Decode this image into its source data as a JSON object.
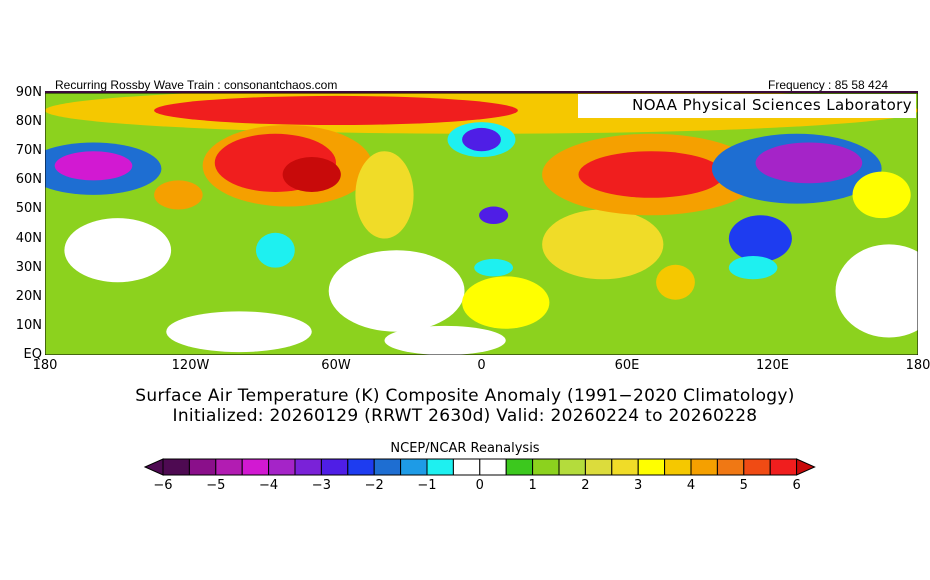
{
  "header": {
    "left": "Recurring Rossby Wave Train : consonantchaos.com",
    "right": "Frequency : 85 58 424",
    "lab": "NOAA Physical Sciences Laboratory"
  },
  "titles": {
    "line1": "Surface Air Temperature (K) Composite Anomaly (1991−2020 Climatology)",
    "line2": "Initialized: 20260129 (RRWT 2630d) Valid: 20260224 to 20260228",
    "source": "NCEP/NCAR Reanalysis"
  },
  "chart_data": {
    "type": "heatmap",
    "title": "Surface Air Temperature (K) Composite Anomaly",
    "lat_labels": [
      "90N",
      "80N",
      "70N",
      "60N",
      "50N",
      "40N",
      "30N",
      "20N",
      "10N",
      "EQ"
    ],
    "lon_labels": [
      "180",
      "120W",
      "60W",
      "0",
      "60E",
      "120E",
      "180"
    ],
    "lat_range": [
      0,
      90
    ],
    "lon_range": [
      -180,
      180
    ],
    "colorbar": {
      "ticks": [
        "-6",
        "-5",
        "-4",
        "-3",
        "-2",
        "-1",
        "0",
        "1",
        "2",
        "3",
        "4",
        "5",
        "6"
      ],
      "range": [
        -6,
        6
      ],
      "step": 0.5,
      "colors": [
        "#4e0a52",
        "#8a0f8a",
        "#b21cb2",
        "#d219d2",
        "#a524c8",
        "#7a22d8",
        "#4f1ee6",
        "#1e3cf0",
        "#1e6ed2",
        "#1e9be6",
        "#1ef0f0",
        "#ffffff",
        "#ffffff",
        "#3cc81e",
        "#8cd21e",
        "#b4dc3c",
        "#dcdc3c",
        "#f0dc28",
        "#ffff00",
        "#f5c800",
        "#f5a000",
        "#f07814",
        "#f04b14",
        "#f01e1e"
      ],
      "under": "#4e0a52",
      "over": "#c80a0a"
    },
    "base_value": 1,
    "features": [
      {
        "lon": 0,
        "lat": 84,
        "dlon": 180,
        "dlat": 8,
        "value": 3.5
      },
      {
        "lon": -60,
        "lat": 84,
        "dlon": 75,
        "dlat": 5,
        "value": 5.5
      },
      {
        "lon": -150,
        "lat": 36,
        "dlon": 22,
        "dlat": 11,
        "value": 0
      },
      {
        "lon": 168,
        "lat": 22,
        "dlon": 22,
        "dlat": 16,
        "value": 0
      },
      {
        "lon": -35,
        "lat": 22,
        "dlon": 28,
        "dlat": 14,
        "value": 0
      },
      {
        "lon": -100,
        "lat": 8,
        "dlon": 30,
        "dlat": 7,
        "value": 0
      },
      {
        "lon": -15,
        "lat": 5,
        "dlon": 25,
        "dlat": 5,
        "value": 0
      },
      {
        "lon": -80,
        "lat": 65,
        "dlon": 35,
        "dlat": 14,
        "value": 4
      },
      {
        "lon": -85,
        "lat": 66,
        "dlon": 25,
        "dlat": 10,
        "value": 5.5
      },
      {
        "lon": -70,
        "lat": 62,
        "dlon": 12,
        "dlat": 6,
        "value": 6
      },
      {
        "lon": -160,
        "lat": 64,
        "dlon": 28,
        "dlat": 9,
        "value": -2
      },
      {
        "lon": -160,
        "lat": 65,
        "dlon": 16,
        "dlat": 5,
        "value": -4.5
      },
      {
        "lon": -125,
        "lat": 55,
        "dlon": 10,
        "dlat": 5,
        "value": 4
      },
      {
        "lon": -85,
        "lat": 36,
        "dlon": 8,
        "dlat": 6,
        "value": -1
      },
      {
        "lon": -40,
        "lat": 55,
        "dlon": 12,
        "dlat": 15,
        "value": 2.5
      },
      {
        "lon": 0,
        "lat": 74,
        "dlon": 14,
        "dlat": 6,
        "value": -1
      },
      {
        "lon": 0,
        "lat": 74,
        "dlon": 8,
        "dlat": 4,
        "value": -3
      },
      {
        "lon": 5,
        "lat": 48,
        "dlon": 6,
        "dlat": 3,
        "value": -3
      },
      {
        "lon": 5,
        "lat": 30,
        "dlon": 8,
        "dlat": 3,
        "value": -1
      },
      {
        "lon": 10,
        "lat": 18,
        "dlon": 18,
        "dlat": 9,
        "value": 3
      },
      {
        "lon": 50,
        "lat": 38,
        "dlon": 25,
        "dlat": 12,
        "value": 2.5
      },
      {
        "lon": 80,
        "lat": 25,
        "dlon": 8,
        "dlat": 6,
        "value": 3.5
      },
      {
        "lon": 70,
        "lat": 62,
        "dlon": 45,
        "dlat": 14,
        "value": 4
      },
      {
        "lon": 70,
        "lat": 62,
        "dlon": 30,
        "dlat": 8,
        "value": 5.5
      },
      {
        "lon": 130,
        "lat": 64,
        "dlon": 35,
        "dlat": 12,
        "value": -2
      },
      {
        "lon": 135,
        "lat": 66,
        "dlon": 22,
        "dlat": 7,
        "value": -4
      },
      {
        "lon": 115,
        "lat": 40,
        "dlon": 13,
        "dlat": 8,
        "value": -2.5
      },
      {
        "lon": 112,
        "lat": 30,
        "dlon": 10,
        "dlat": 4,
        "value": -1
      },
      {
        "lon": 165,
        "lat": 55,
        "dlon": 12,
        "dlat": 8,
        "value": 3
      }
    ]
  }
}
